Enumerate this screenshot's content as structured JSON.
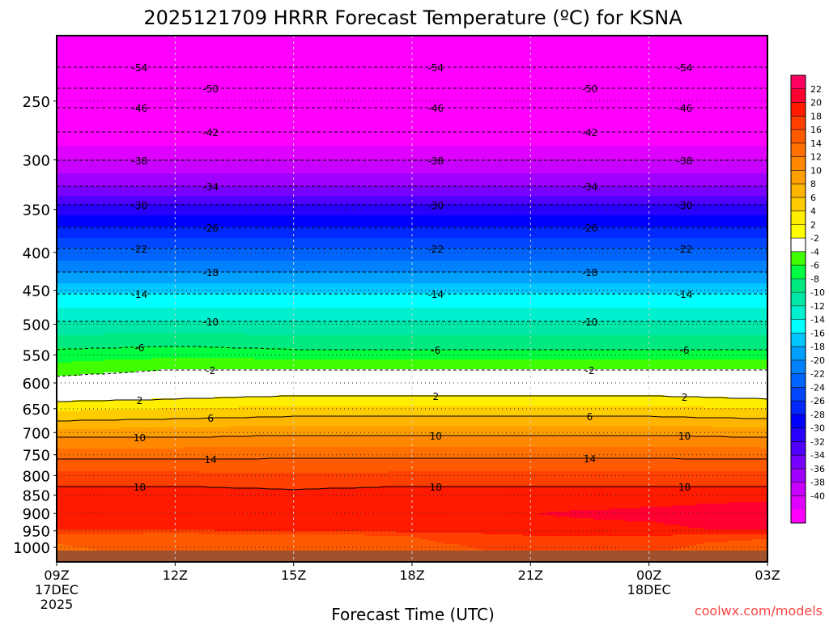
{
  "chart_data": {
    "type": "heatmap",
    "title": "2025121709 HRRR Forecast Temperature (ºC) for KSNA",
    "xlabel": "Forecast Time (UTC)",
    "ylabel": "",
    "watermark": "coolwx.com/models",
    "x_ticks": [
      {
        "hour": 0,
        "label": "09Z",
        "sub": "17DEC",
        "sub2": "2025"
      },
      {
        "hour": 3,
        "label": "12Z"
      },
      {
        "hour": 6,
        "label": "15Z"
      },
      {
        "hour": 9,
        "label": "18Z"
      },
      {
        "hour": 12,
        "label": "21Z"
      },
      {
        "hour": 15,
        "label": "00Z",
        "sub": "18DEC"
      },
      {
        "hour": 18,
        "label": "03Z"
      }
    ],
    "xlim": [
      0,
      18
    ],
    "ylim_hpa": [
      1046,
      204
    ],
    "y_ticks": [
      250,
      300,
      350,
      400,
      450,
      500,
      550,
      600,
      650,
      700,
      750,
      800,
      850,
      900,
      950,
      1000
    ],
    "times_hours": [
      0,
      3,
      6,
      9,
      12,
      15,
      18
    ],
    "pressure_levels": [
      200,
      225,
      240,
      255,
      275,
      300,
      325,
      345,
      370,
      395,
      425,
      455,
      495,
      540,
      575,
      600,
      630,
      670,
      710,
      765,
      835,
      900,
      945,
      965,
      990,
      1010
    ],
    "temperature": [
      [
        -58,
        -54,
        -50,
        -46,
        -42,
        -38,
        -34,
        -30,
        -26,
        -22,
        -18,
        -14,
        -10,
        -6,
        -3,
        -1,
        1.5,
        5.5,
        10,
        14.5,
        18.5,
        20,
        18.5,
        15,
        14,
        13.5
      ],
      [
        -58,
        -54,
        -50,
        -46,
        -42,
        -38,
        -34,
        -30,
        -26,
        -22,
        -18,
        -14,
        -10,
        -5.5,
        -2,
        0,
        2,
        6,
        10,
        14.5,
        18.5,
        20,
        18.5,
        14.5,
        15,
        15
      ],
      [
        -58,
        -54,
        -50,
        -46,
        -42,
        -38,
        -34,
        -30,
        -26,
        -22,
        -18,
        -14,
        -10,
        -6,
        -2,
        0,
        2.5,
        6.5,
        10.5,
        14.5,
        18,
        20,
        19,
        15,
        15.5,
        15.5
      ],
      [
        -58,
        -54,
        -50,
        -46,
        -42,
        -38,
        -34,
        -30,
        -26,
        -22,
        -18,
        -14,
        -10,
        -6,
        -2,
        0,
        2.5,
        6.5,
        10.5,
        14.5,
        18.5,
        20,
        19.5,
        16,
        15.5,
        15
      ],
      [
        -58,
        -54,
        -50,
        -46,
        -42,
        -38,
        -34,
        -30,
        -26,
        -22,
        -18,
        -14,
        -10,
        -6,
        -2,
        0,
        2.5,
        6.5,
        10.5,
        14.5,
        18.5,
        20,
        19.5,
        18,
        17,
        16.5
      ],
      [
        -58,
        -54,
        -50,
        -46,
        -42,
        -38,
        -34,
        -30,
        -26,
        -22,
        -18,
        -14,
        -10,
        -6,
        -2,
        0,
        2.5,
        6.5,
        10.5,
        14.5,
        18.5,
        20.5,
        19.5,
        18,
        17,
        16.5
      ],
      [
        -58,
        -54,
        -50,
        -46,
        -42,
        -38,
        -34,
        -30,
        -26,
        -22,
        -18,
        -14,
        -10,
        -6,
        -2,
        0,
        2,
        6,
        10,
        14.5,
        18.5,
        21.5,
        20.5,
        17,
        14.5,
        14
      ]
    ],
    "ground_below_hpa": 1012,
    "contour_levels": [
      -54,
      -50,
      -46,
      -42,
      -38,
      -34,
      -30,
      -26,
      -22,
      -18,
      -14,
      -10,
      -6,
      -2,
      2,
      6,
      10,
      14,
      18
    ],
    "colorbar": {
      "labels": [
        22,
        20,
        18,
        16,
        14,
        12,
        10,
        8,
        6,
        4,
        2,
        -2,
        -4,
        -6,
        -8,
        -10,
        -12,
        -14,
        -16,
        -18,
        -20,
        -22,
        -24,
        -26,
        -28,
        -30,
        -32,
        -34,
        -36,
        -38,
        -40
      ],
      "colors": [
        "#ff0060",
        "#ff0030",
        "#ff1a00",
        "#ff4000",
        "#ff5a00",
        "#ff7000",
        "#ff8800",
        "#ff9e00",
        "#ffb400",
        "#ffcc00",
        "#ffee00",
        "#ffff00",
        "#ffffff",
        "#40ff00",
        "#00ff40",
        "#00e880",
        "#00e8a8",
        "#00f0d0",
        "#00ffff",
        "#00c8ff",
        "#00a0ff",
        "#0082ff",
        "#0064ff",
        "#0046ff",
        "#0028ff",
        "#0000ff",
        "#2800ff",
        "#5000ff",
        "#7800ff",
        "#a000ff",
        "#c800ff",
        "#e000ff",
        "#ff00ff"
      ],
      "ground_color": "#a0522d"
    }
  }
}
